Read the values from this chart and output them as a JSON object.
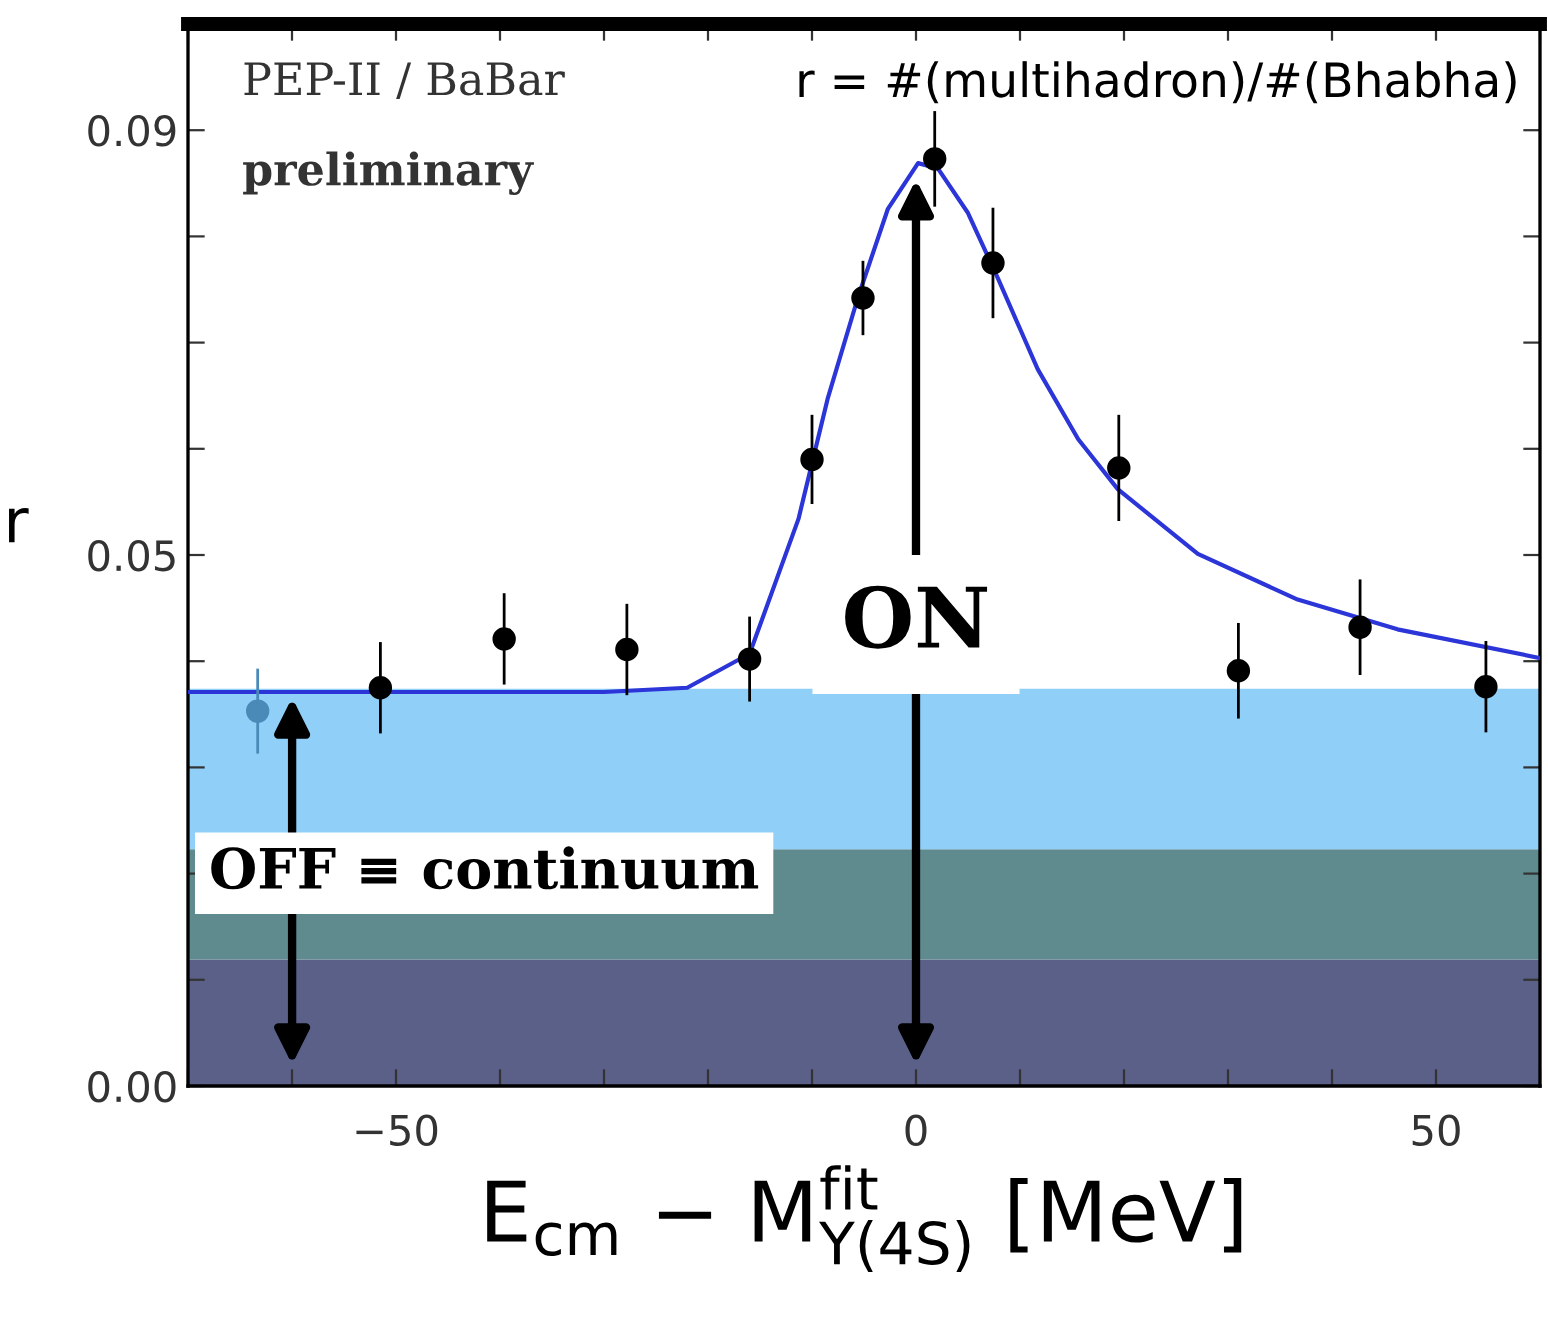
{
  "chart_data": {
    "type": "scatter",
    "title": "r = #(multihadron)/#(Bhabha)",
    "xlabel": "E$_{cm}$ − M$^{fit}$$_{Υ(4S)}$ [MeV]",
    "ylabel": "r",
    "annotations": [
      "PEP-II / BaBar",
      "preliminary",
      "ON",
      "OFF ≡ continuum"
    ],
    "xlim": [
      -70,
      60
    ],
    "ylim": [
      0,
      0.1
    ],
    "xticks": [
      {
        "value": -70,
        "label": null
      },
      {
        "value": -60,
        "label": null
      },
      {
        "value": -50,
        "label": "−50"
      },
      {
        "value": -40,
        "label": null
      },
      {
        "value": -30,
        "label": null
      },
      {
        "value": -20,
        "label": null
      },
      {
        "value": -10,
        "label": null
      },
      0,
      {
        "value": 10,
        "label": null
      },
      {
        "value": 20,
        "label": null
      },
      {
        "value": 30,
        "label": null
      },
      {
        "value": 40,
        "label": null
      },
      50,
      {
        "value": 60,
        "label": null
      }
    ],
    "yticks": [
      {
        "value": 0,
        "label": "0.00"
      },
      {
        "value": 0.01,
        "label": null
      },
      {
        "value": 0.02,
        "label": null
      },
      {
        "value": 0.03,
        "label": null
      },
      {
        "value": 0.04,
        "label": null
      },
      {
        "value": 0.05,
        "label": "0.05"
      },
      {
        "value": 0.06,
        "label": null
      },
      {
        "value": 0.07,
        "label": null
      },
      {
        "value": 0.08,
        "label": null
      },
      {
        "value": 0.09,
        "label": "0.09"
      }
    ],
    "grid": false,
    "legend": false,
    "bands": [
      {
        "axis": "y",
        "from": 0,
        "to": 0.0119,
        "color": "#5b6089"
      },
      {
        "axis": "y",
        "from": 0.0119,
        "to": 0.0223,
        "color": "#5f8b8f"
      },
      {
        "axis": "y",
        "from": 0.0223,
        "to": 0.0374,
        "color": "#90cff8"
      }
    ],
    "series": [
      {
        "type": "line",
        "color": "#2b35d8",
        "marker": "none",
        "line_style": "solid",
        "x": [
          -70,
          -30,
          -22,
          -16,
          -11.3,
          -8.5,
          -5.6,
          -2.7,
          0.2,
          2.1,
          5,
          7.9,
          11.7,
          15.6,
          19.4,
          27.1,
          36.7,
          46.3,
          60
        ],
        "values": [
          0.0371,
          0.0371,
          0.0375,
          0.0407,
          0.0534,
          0.0647,
          0.0742,
          0.0826,
          0.0869,
          0.0864,
          0.0822,
          0.076,
          0.0675,
          0.0609,
          0.0562,
          0.0501,
          0.0458,
          0.043,
          0.0403
        ]
      },
      {
        "marker": "circle",
        "colors": [
          "#4a8ab8",
          "#000000",
          "#000000",
          "#000000",
          "#000000",
          "#000000",
          "#000000",
          "#000000",
          "#000000",
          "#000000",
          "#000000",
          "#000000",
          "#000000"
        ],
        "x": [
          -63.3,
          -51.5,
          -39.6,
          -27.8,
          -16.0,
          -10.0,
          -5.1,
          1.8,
          7.4,
          19.5,
          31.0,
          42.7,
          54.8
        ],
        "values": [
          0.0353,
          0.0375,
          0.0421,
          0.0411,
          0.0402,
          0.059,
          0.0742,
          0.0873,
          0.0775,
          0.0582,
          0.0391,
          0.0432,
          0.0376
        ],
        "errors": [
          0.004,
          0.0043,
          0.0043,
          0.0043,
          0.004,
          0.0042,
          0.0035,
          0.0045,
          0.0052,
          0.005,
          0.0045,
          0.0045,
          0.0043
        ]
      }
    ]
  }
}
